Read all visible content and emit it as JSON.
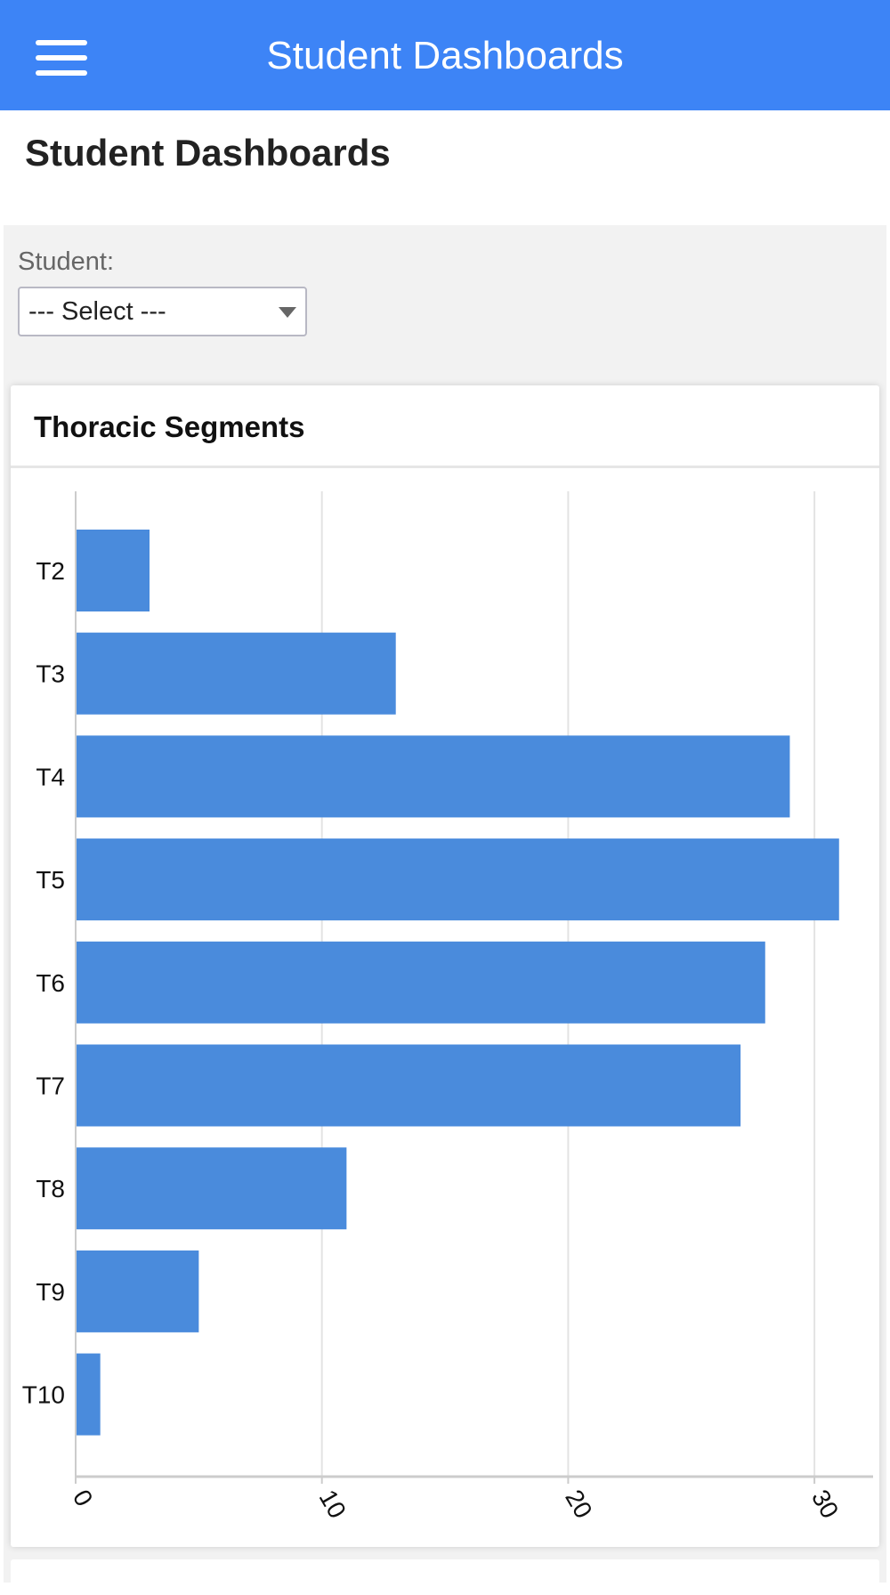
{
  "header": {
    "title": "Student Dashboards",
    "menu_icon": "hamburger-icon",
    "color": "#3d84f6"
  },
  "page": {
    "title": "Student Dashboards"
  },
  "filter": {
    "label": "Student:",
    "select_value": "--- Select ---"
  },
  "card": {
    "title": "Thoracic Segments"
  },
  "chart_data": {
    "type": "bar",
    "orientation": "horizontal",
    "categories": [
      "T2",
      "T3",
      "T4",
      "T5",
      "T6",
      "T7",
      "T8",
      "T9",
      "T10"
    ],
    "values": [
      3,
      13,
      29,
      31,
      28,
      27,
      11,
      5,
      1
    ],
    "xticks": [
      "0",
      "10",
      "20",
      "30"
    ],
    "xlim": [
      0,
      32.5
    ],
    "grid": true,
    "bar_color": "#4a8bdc"
  }
}
